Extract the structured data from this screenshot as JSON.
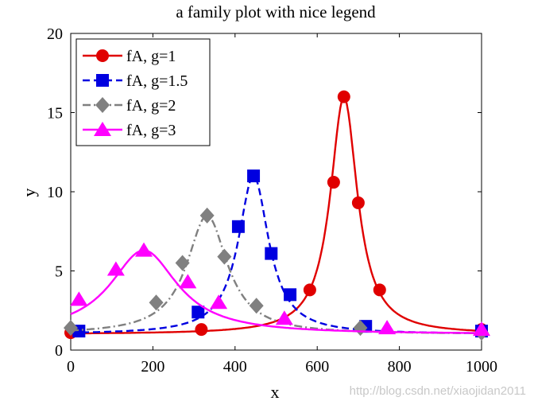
{
  "chart_data": {
    "type": "line",
    "title": "a family plot with nice legend",
    "xlabel": "x",
    "ylabel": "y",
    "xlim": [
      0,
      1000
    ],
    "ylim": [
      0,
      20
    ],
    "xticks": [
      0,
      200,
      400,
      600,
      800,
      1000
    ],
    "yticks": [
      0,
      5,
      10,
      15,
      20
    ],
    "legend_position": "top-left",
    "series": [
      {
        "name": "fA, g=1",
        "color": "#e00000",
        "linestyle": "solid",
        "marker": "circle",
        "peak_x": 665,
        "peak_y": 16.0,
        "width": 40,
        "base": 1.0,
        "markers": [
          [
            0,
            1.1
          ],
          [
            318,
            1.3
          ],
          [
            582,
            3.8
          ],
          [
            640,
            10.6
          ],
          [
            665,
            16.0
          ],
          [
            700,
            9.3
          ],
          [
            752,
            3.8
          ],
          [
            1000,
            1.3
          ]
        ]
      },
      {
        "name": "fA, g=1.5",
        "color": "#0000e0",
        "linestyle": "dashed",
        "marker": "square",
        "peak_x": 445,
        "peak_y": 11.0,
        "width": 45,
        "base": 1.0,
        "markers": [
          [
            20,
            1.2
          ],
          [
            310,
            2.4
          ],
          [
            408,
            7.8
          ],
          [
            445,
            11.0
          ],
          [
            488,
            6.1
          ],
          [
            534,
            3.5
          ],
          [
            718,
            1.5
          ],
          [
            1000,
            1.2
          ]
        ]
      },
      {
        "name": "fA, g=2",
        "color": "#808080",
        "linestyle": "dashdot",
        "marker": "diamond",
        "peak_x": 332,
        "peak_y": 8.5,
        "width": 60,
        "base": 1.0,
        "markers": [
          [
            0,
            1.4
          ],
          [
            208,
            3.0
          ],
          [
            272,
            5.5
          ],
          [
            332,
            8.5
          ],
          [
            374,
            5.9
          ],
          [
            452,
            2.8
          ],
          [
            705,
            1.4
          ],
          [
            1000,
            1.1
          ]
        ]
      },
      {
        "name": "fA, g=3",
        "color": "#ff00ff",
        "linestyle": "solid",
        "marker": "triangle",
        "peak_x": 178,
        "peak_y": 6.3,
        "width": 100,
        "base": 1.0,
        "markers": [
          [
            20,
            3.2
          ],
          [
            110,
            5.1
          ],
          [
            178,
            6.3
          ],
          [
            285,
            4.3
          ],
          [
            360,
            3.0
          ],
          [
            520,
            2.0
          ],
          [
            770,
            1.4
          ],
          [
            1000,
            1.3
          ]
        ]
      }
    ]
  },
  "watermark": "http://blog.csdn.net/xiaojidan2011"
}
